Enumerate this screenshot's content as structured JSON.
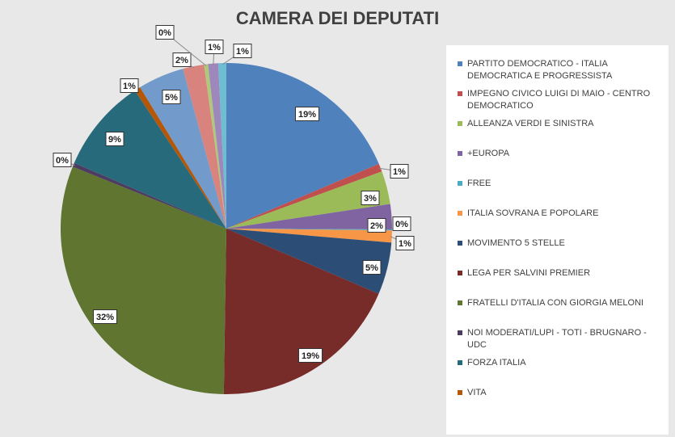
{
  "chart_data": {
    "type": "pie",
    "title": "CAMERA DEI DEPUTATI",
    "legend_position": "right",
    "slices": [
      {
        "name": "PARTITO DEMOCRATICO - ITALIA DEMOCRATICA E PROGRESSISTA",
        "value": 19,
        "label": "19%",
        "color": "#4f81bd"
      },
      {
        "name": "IMPEGNO CIVICO LUIGI DI MAIO - CENTRO DEMOCRATICO",
        "value": 0.8,
        "label": "1%",
        "color": "#c0504d"
      },
      {
        "name": "ALLEANZA VERDI E SINISTRA",
        "value": 3.3,
        "label": "3%",
        "color": "#9bbb59"
      },
      {
        "name": "+EUROPA",
        "value": 2.5,
        "label": "2%",
        "color": "#8064a2"
      },
      {
        "name": "FREE",
        "value": 0.1,
        "label": "0%",
        "color": "#4bacc6"
      },
      {
        "name": "ITALIA SOVRANA E POPOLARE",
        "value": 1.2,
        "label": "1%",
        "color": "#f79646"
      },
      {
        "name": "MOVIMENTO 5 STELLE",
        "value": 5.2,
        "label": "5%",
        "color": "#2c4d75"
      },
      {
        "name": "LEGA PER SALVINI PREMIER",
        "value": 19.2,
        "label": "19%",
        "color": "#772c2a"
      },
      {
        "name": "FRATELLI D'ITALIA CON GIORGIA MELONI",
        "value": 31.5,
        "label": "32%",
        "color": "#5f7530"
      },
      {
        "name": "NOI MODERATI/LUPI - TOTI - BRUGNARO - UDC",
        "value": 0.4,
        "label": "0%",
        "color": "#4d3b62"
      },
      {
        "name": "FORZA ITALIA",
        "value": 9.4,
        "label": "9%",
        "color": "#276a7c"
      },
      {
        "name": "VITA",
        "value": 0.6,
        "label": "1%",
        "color": "#b65708"
      },
      {
        "name": "",
        "value": 4.6,
        "label": "5%",
        "color": "#729aca"
      },
      {
        "name": "",
        "value": 2.1,
        "label": "2%",
        "color": "#d9837f"
      },
      {
        "name": "",
        "value": 0.4,
        "label": "0%",
        "color": "#aec97a"
      },
      {
        "name": "",
        "value": 1.0,
        "label": "1%",
        "color": "#9e88bb"
      },
      {
        "name": "",
        "value": 0.8,
        "label": "1%",
        "color": "#6fbdd3"
      }
    ]
  }
}
